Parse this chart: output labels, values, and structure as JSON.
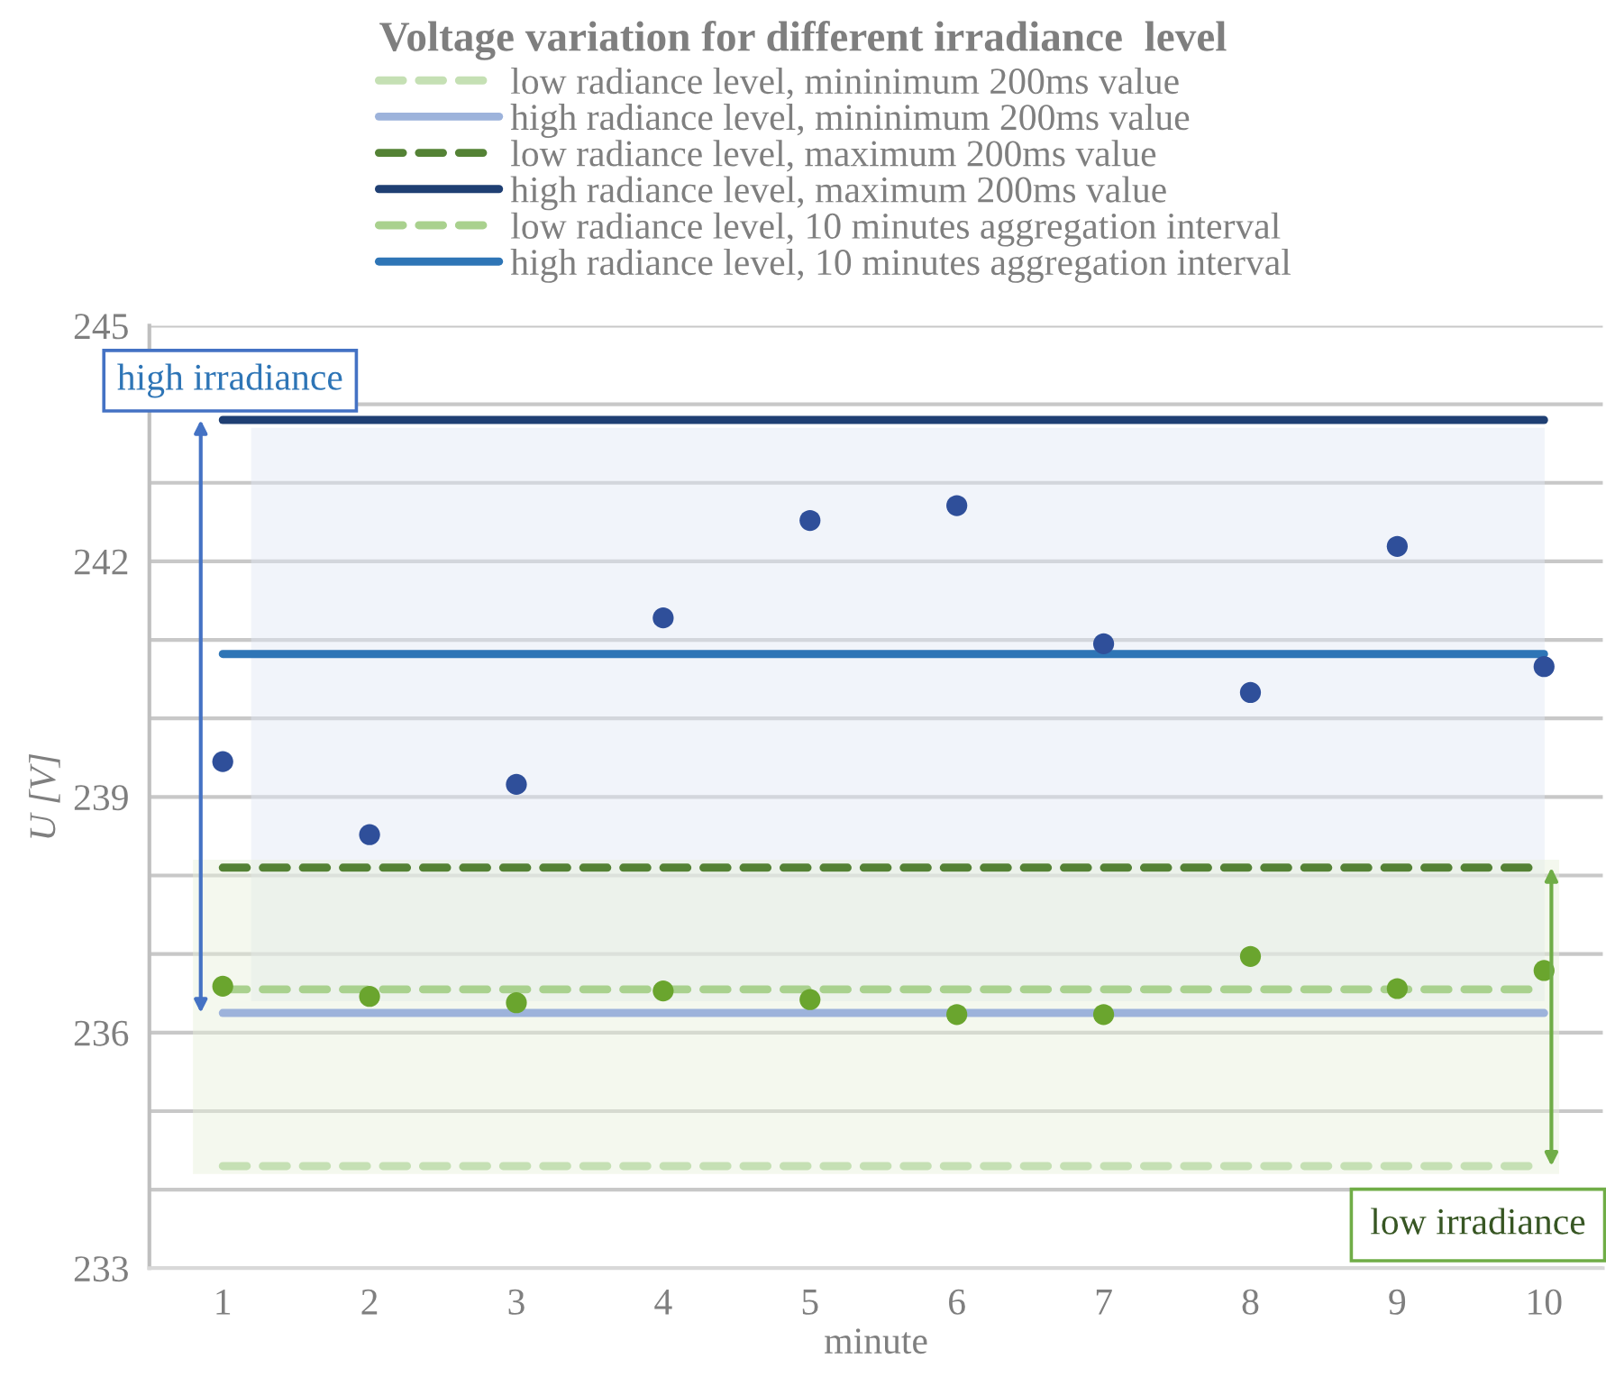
{
  "chart_data": {
    "type": "line",
    "title": "Voltage variation for different irradiance  level",
    "xlabel": "minute",
    "ylabel": "U [V]",
    "categories": [
      "1",
      "2",
      "3",
      "4",
      "5",
      "6",
      "7",
      "8",
      "9",
      "10"
    ],
    "series": [
      {
        "name": "low radiance level, mininimum 200ms value",
        "color": "#c5e0b4",
        "line_style": "dashed",
        "values": [
          234.3,
          234.3,
          234.3,
          234.3,
          234.3,
          234.3,
          234.3,
          234.3,
          234.3,
          234.3
        ]
      },
      {
        "name": "high radiance level, mininimum 200ms value",
        "color": "#9db3db",
        "line_style": "solid",
        "values": [
          236.25,
          236.25,
          236.25,
          236.25,
          236.25,
          236.25,
          236.25,
          236.25,
          236.25,
          236.25
        ]
      },
      {
        "name": "low radiance level, maximum 200ms value",
        "color": "#548235",
        "line_style": "dashed",
        "values": [
          238.1,
          238.1,
          238.1,
          238.1,
          238.1,
          238.1,
          238.1,
          238.1,
          238.1,
          238.1
        ]
      },
      {
        "name": "high radiance level, maximum 200ms value",
        "color": "#1f3f73",
        "line_style": "solid",
        "values": [
          243.8,
          243.8,
          243.8,
          243.8,
          243.8,
          243.8,
          243.8,
          243.8,
          243.8,
          243.8
        ]
      },
      {
        "name": "low radiance level, 10 minutes aggregation interval",
        "color": "#a9d18e",
        "line_style": "dashed",
        "values": [
          236.55,
          236.55,
          236.55,
          236.55,
          236.55,
          236.55,
          236.55,
          236.55,
          236.55,
          236.55
        ]
      },
      {
        "name": "high radiance level, 10 minutes aggregation interval",
        "color": "#2e75b6",
        "line_style": "solid",
        "values": [
          240.82,
          240.82,
          240.82,
          240.82,
          240.82,
          240.82,
          240.82,
          240.82,
          240.82,
          240.82
        ]
      },
      {
        "type": "scatter",
        "marker": "circle",
        "color": "#2f4f9a",
        "values": [
          239.45,
          238.52,
          239.16,
          241.28,
          242.52,
          242.71,
          240.95,
          240.33,
          242.19,
          240.66
        ]
      },
      {
        "type": "scatter",
        "marker": "circle",
        "color": "#6aa52e",
        "values": [
          236.59,
          236.46,
          236.38,
          236.53,
          236.42,
          236.23,
          236.23,
          236.97,
          236.56,
          236.79
        ]
      }
    ],
    "bands": [
      {
        "axis": "y",
        "from": 236.4,
        "to": 243.7,
        "color": "#dfe7f3"
      },
      {
        "axis": "y",
        "from": 234.2,
        "to": 238.2,
        "color": "#e6efd9"
      }
    ],
    "annotations": [
      "high irradiance",
      "low irradiance"
    ],
    "ylim": [
      233,
      245
    ],
    "yticks": [
      233,
      {
        "value": 234,
        "label": null
      },
      {
        "value": 235,
        "label": null
      },
      236,
      {
        "value": 237,
        "label": null
      },
      {
        "value": 238,
        "label": null
      },
      239,
      {
        "value": 240,
        "label": null
      },
      {
        "value": 241,
        "label": null
      },
      242,
      {
        "value": 243,
        "label": null
      },
      {
        "value": 244,
        "label": null
      },
      245
    ],
    "grid": "y",
    "legend": "top"
  }
}
